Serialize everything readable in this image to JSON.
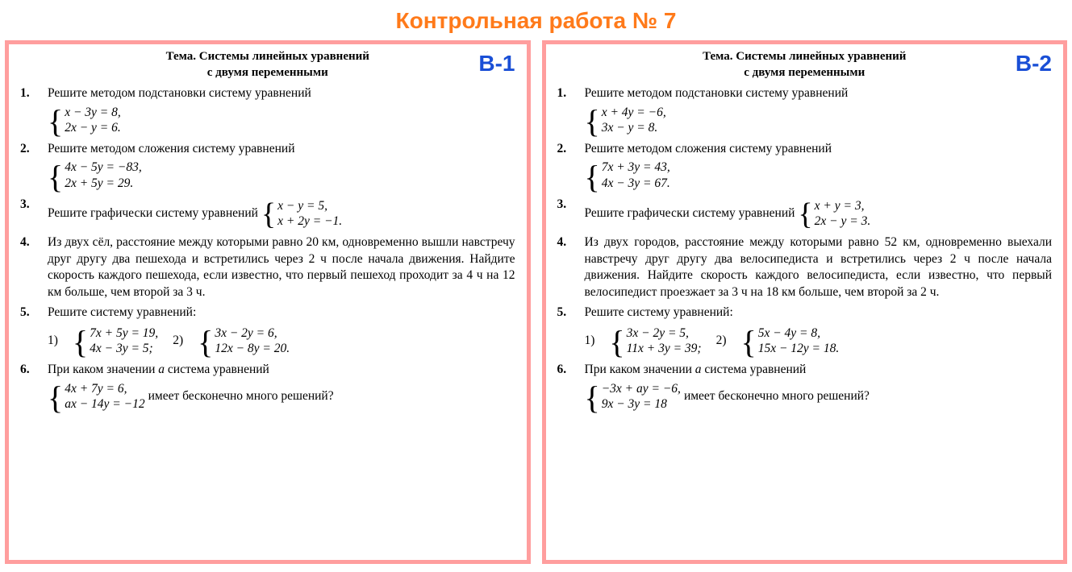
{
  "colors": {
    "title": "#ff7a1a",
    "variant_border": "#ff9e9e",
    "variant_label": "#1a4fd6",
    "text": "#000000",
    "background": "#ffffff"
  },
  "title": "Контрольная работа № 7",
  "theme_label": "Тема.",
  "theme_text_line1": "Системы линейных уравнений",
  "theme_text_line2": "с двумя переменными",
  "variants": [
    {
      "label": "В-1",
      "problems": [
        {
          "num": "1.",
          "text": "Решите методом подстановки систему уравнений",
          "system": {
            "eq1": "x − 3y = 8,",
            "eq2": "2x − y = 6."
          }
        },
        {
          "num": "2.",
          "text": "Решите методом сложения систему уравнений",
          "system": {
            "eq1": "4x − 5y = −83,",
            "eq2": "2x + 5y = 29."
          }
        },
        {
          "num": "3.",
          "text_before": "Решите графически систему уравнений",
          "inline_system": {
            "eq1": "x − y = 5,",
            "eq2": "x + 2y = −1."
          }
        },
        {
          "num": "4.",
          "paragraph": "Из двух сёл, расстояние между которыми равно 20 км, одновременно вышли навстречу друг другу два пешехода и встретились через 2 ч после начала движения. Найдите скорость каждого пешехода, если известно, что первый пешеход проходит за 4 ч на 12 км больше, чем второй за 3 ч."
        },
        {
          "num": "5.",
          "text": "Решите систему уравнений:",
          "subs": [
            {
              "label": "1)",
              "system": {
                "eq1": "7x + 5y = 19,",
                "eq2": "4x − 3y = 5;"
              }
            },
            {
              "label": "2)",
              "system": {
                "eq1": "3x − 2y = 6,",
                "eq2": "12x − 8y = 20."
              }
            }
          ]
        },
        {
          "num": "6.",
          "text_before": "При каком значении ",
          "param": "a",
          "text_after": " система уравнений",
          "system": {
            "eq1": "4x + 7y = 6,",
            "eq2": "ax − 14y = −12"
          },
          "tail": "имеет бесконечно много решений?"
        }
      ]
    },
    {
      "label": "В-2",
      "problems": [
        {
          "num": "1.",
          "text": "Решите методом подстановки систему уравнений",
          "system": {
            "eq1": "x + 4y = −6,",
            "eq2": "3x − y = 8."
          }
        },
        {
          "num": "2.",
          "text": "Решите методом сложения систему уравнений",
          "system": {
            "eq1": "7x + 3y = 43,",
            "eq2": "4x − 3y = 67."
          }
        },
        {
          "num": "3.",
          "text_before": "Решите графически систему уравнений",
          "inline_system": {
            "eq1": "x + y = 3,",
            "eq2": "2x − y = 3."
          }
        },
        {
          "num": "4.",
          "paragraph": "Из двух городов, расстояние между которыми равно 52 км, одновременно выехали навстречу друг другу два велосипедиста и встретились через 2 ч после начала движения. Найдите скорость каждого велосипедиста, если известно, что первый велосипедист проезжает за 3 ч на 18 км больше, чем второй за 2 ч."
        },
        {
          "num": "5.",
          "text": "Решите систему уравнений:",
          "subs": [
            {
              "label": "1)",
              "system": {
                "eq1": "3x − 2y = 5,",
                "eq2": "11x + 3y = 39;"
              }
            },
            {
              "label": "2)",
              "system": {
                "eq1": "5x − 4y = 8,",
                "eq2": "15x − 12y = 18."
              }
            }
          ]
        },
        {
          "num": "6.",
          "text_before": "При каком значении ",
          "param": "a",
          "text_after": " система уравнений",
          "system": {
            "eq1": "−3x + ay = −6,",
            "eq2": "9x − 3y = 18"
          },
          "tail": "имеет бесконечно много решений?"
        }
      ]
    }
  ]
}
